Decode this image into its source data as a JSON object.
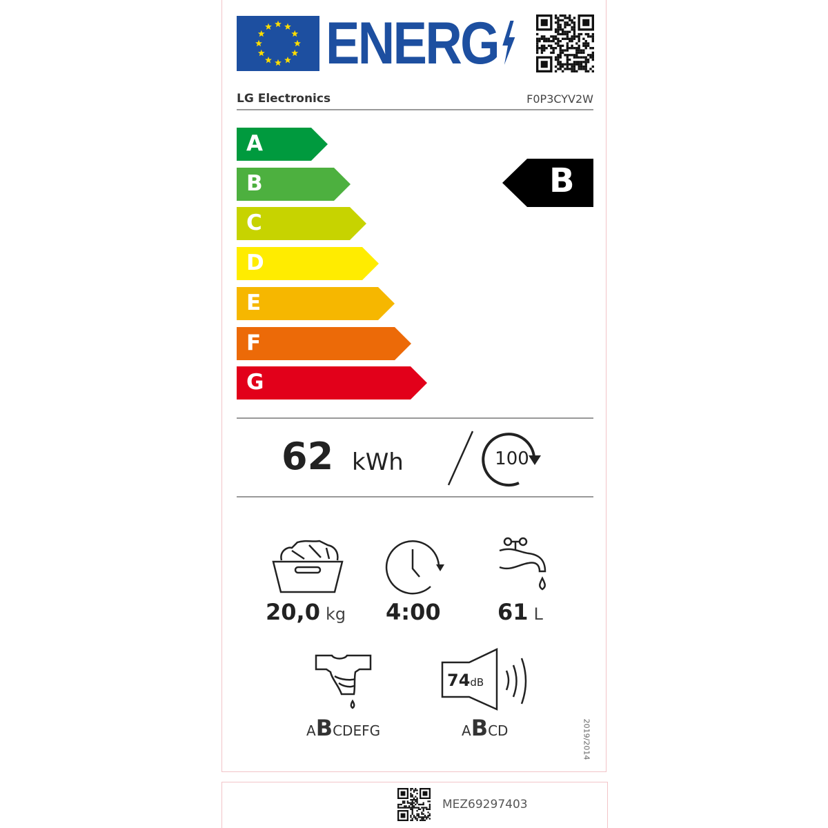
{
  "header": {
    "title": "ENERG",
    "supplier": "LG Electronics",
    "model": "F0P3CYV2W"
  },
  "energy_scale": {
    "classes": [
      {
        "letter": "A",
        "color": "#009a3e"
      },
      {
        "letter": "B",
        "color": "#4db03f"
      },
      {
        "letter": "C",
        "color": "#c7d300"
      },
      {
        "letter": "D",
        "color": "#ffec00"
      },
      {
        "letter": "E",
        "color": "#f6b700"
      },
      {
        "letter": "F",
        "color": "#ec6a08"
      },
      {
        "letter": "G",
        "color": "#e2001a"
      }
    ],
    "rating": "B"
  },
  "consumption": {
    "value": "62",
    "unit": "kWh",
    "cycles": "100"
  },
  "specs": {
    "capacity": {
      "value": "20,0",
      "unit": "kg",
      "icon": "laundry-basket-icon"
    },
    "duration": {
      "value": "4:00",
      "icon": "clock-icon"
    },
    "water": {
      "value": "61",
      "unit": "L",
      "icon": "tap-icon"
    },
    "spin_class": {
      "before": "A",
      "selected": "B",
      "after": "CDEFG",
      "icon": "shirt-drip-icon"
    },
    "noise": {
      "value": "74",
      "unit": "dB",
      "before": "A",
      "selected": "B",
      "after": "CD",
      "icon": "speaker-icon"
    }
  },
  "regulation": "2019/2014",
  "footer": {
    "code": "MEZ69297403"
  },
  "colors": {
    "eu_blue": "#1d4fa0",
    "star_yellow": "#ffdd00"
  }
}
